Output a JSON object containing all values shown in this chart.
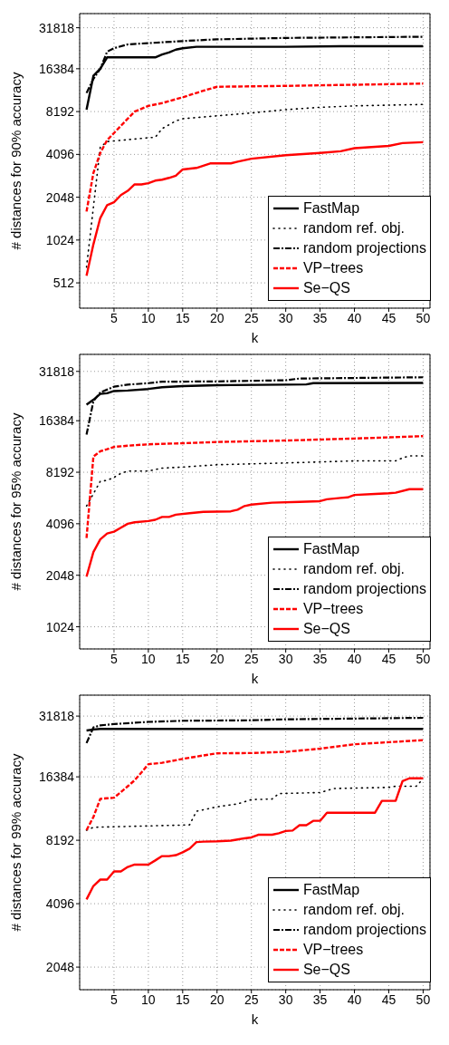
{
  "chart_data": [
    {
      "type": "line",
      "xlabel": "k",
      "ylabel": "# distances for 90% accuracy",
      "log": "y",
      "grid": true,
      "legend": "bottom right",
      "marker": "none",
      "xlim": [
        0,
        51
      ],
      "xticks": [
        5,
        10,
        15,
        20,
        25,
        30,
        35,
        40,
        45,
        50
      ],
      "ylim": [
        340,
        40000
      ],
      "yticks": [
        512,
        1024,
        2048,
        4096,
        8192,
        16384,
        31818
      ],
      "series": [
        {
          "name": "FastMap",
          "color": "#000000",
          "line_style": "solid",
          "x": [
            1,
            2,
            3,
            4,
            11,
            12,
            13,
            14,
            15,
            17,
            30,
            38,
            50
          ],
          "values": [
            8450,
            14600,
            16384,
            19700,
            19700,
            20640,
            21300,
            22330,
            22840,
            23380,
            23380,
            23600,
            23600
          ]
        },
        {
          "name": "random ref. obj.",
          "color": "#000000",
          "line_style": "dotted",
          "x": [
            1,
            3,
            4,
            10,
            11,
            12,
            14,
            15,
            20,
            25,
            30,
            35,
            40,
            50
          ],
          "values": [
            660,
            4600,
            5040,
            5360,
            5400,
            6210,
            7040,
            7300,
            7650,
            8010,
            8450,
            8780,
            8980,
            9190
          ]
        },
        {
          "name": "random projections",
          "color": "#000000",
          "line_style": "dashdot",
          "x": [
            1,
            2,
            3,
            4,
            5,
            7,
            10,
            15,
            20,
            30,
            50
          ],
          "values": [
            11060,
            13900,
            16384,
            21600,
            22840,
            24300,
            24800,
            25650,
            26370,
            26980,
            27500
          ]
        },
        {
          "name": "VP−trees",
          "color": "#ff0000",
          "line_style": "dashed",
          "x": [
            1,
            2,
            3,
            4,
            5,
            6,
            7,
            8,
            10,
            12,
            15,
            18,
            20,
            30,
            50
          ],
          "values": [
            1625,
            3030,
            4190,
            5160,
            5790,
            6500,
            7300,
            8190,
            8980,
            9400,
            10320,
            11480,
            12240,
            12410,
            12880
          ]
        },
        {
          "name": "Se−QS",
          "color": "#ff0000",
          "line_style": "solid",
          "x": [
            1,
            2,
            3,
            4,
            5,
            6,
            7,
            8,
            9,
            10,
            11,
            12,
            13,
            14,
            15,
            17,
            19,
            22,
            23,
            25,
            30,
            35,
            38,
            40,
            45,
            47,
            50
          ],
          "values": [
            575,
            955,
            1462,
            1803,
            1890,
            2120,
            2270,
            2520,
            2520,
            2570,
            2680,
            2720,
            2800,
            2900,
            3210,
            3290,
            3540,
            3540,
            3640,
            3820,
            4040,
            4190,
            4310,
            4530,
            4700,
            4920,
            4990
          ]
        }
      ]
    },
    {
      "type": "line",
      "xlabel": "k",
      "ylabel": "# distances for 95% accuracy",
      "log": "y",
      "grid": true,
      "legend": "bottom right",
      "marker": "none",
      "xlim": [
        0,
        51
      ],
      "xticks": [
        5,
        10,
        15,
        20,
        25,
        30,
        35,
        40,
        45,
        50
      ],
      "ylim": [
        760,
        40000
      ],
      "yticks": [
        1024,
        2048,
        4096,
        8192,
        16384,
        31818
      ],
      "series": [
        {
          "name": "FastMap",
          "color": "#000000",
          "line_style": "solid",
          "x": [
            1,
            2,
            3,
            4,
            5,
            7,
            10,
            12,
            15,
            20,
            30,
            33,
            34,
            50
          ],
          "values": [
            20320,
            21720,
            23490,
            23700,
            24420,
            24600,
            25110,
            25700,
            26100,
            26420,
            26620,
            26700,
            27150,
            27250
          ]
        },
        {
          "name": "random ref. obj.",
          "color": "#000000",
          "line_style": "dotted",
          "x": [
            1,
            2,
            3,
            4,
            5,
            6,
            7,
            10,
            12,
            15,
            20,
            30,
            40,
            46,
            47,
            48,
            50
          ],
          "values": [
            5200,
            6130,
            7250,
            7350,
            7640,
            8060,
            8320,
            8320,
            8660,
            8780,
            9060,
            9280,
            9540,
            9540,
            9930,
            10210,
            10210
          ]
        },
        {
          "name": "random projections",
          "color": "#000000",
          "line_style": "dashdot",
          "x": [
            1,
            2,
            3,
            4,
            5,
            7,
            10,
            12,
            20,
            30,
            32,
            50
          ],
          "values": [
            13580,
            21300,
            23950,
            24900,
            25900,
            26620,
            27150,
            27690,
            27800,
            28250,
            28900,
            29400
          ]
        },
        {
          "name": "VP−trees",
          "color": "#ff0000",
          "line_style": "dashed",
          "x": [
            1,
            2,
            3,
            4,
            5,
            7,
            10,
            15,
            20,
            30,
            40,
            50
          ],
          "values": [
            3380,
            10120,
            10860,
            11160,
            11520,
            11700,
            11930,
            12100,
            12300,
            12550,
            12890,
            13310
          ]
        },
        {
          "name": "Se−QS",
          "color": "#ff0000",
          "line_style": "solid",
          "x": [
            1,
            2,
            3,
            4,
            5,
            6,
            7,
            8,
            10,
            11,
            12,
            13,
            14,
            16,
            18,
            22,
            23,
            24,
            25,
            28,
            32,
            35,
            36,
            38,
            39,
            40,
            43,
            45,
            46,
            48,
            50
          ],
          "values": [
            2010,
            2800,
            3320,
            3590,
            3680,
            3880,
            4096,
            4180,
            4250,
            4320,
            4490,
            4490,
            4630,
            4720,
            4810,
            4840,
            4950,
            5200,
            5300,
            5440,
            5500,
            5550,
            5690,
            5800,
            5840,
            6030,
            6120,
            6170,
            6220,
            6520,
            6520
          ]
        }
      ]
    },
    {
      "type": "line",
      "xlabel": "k",
      "ylabel": "# distances for 99% accuracy",
      "log": "y",
      "grid": true,
      "legend": "bottom right",
      "marker": "none",
      "xlim": [
        0,
        51
      ],
      "xticks": [
        5,
        10,
        15,
        20,
        25,
        30,
        35,
        40,
        45,
        50
      ],
      "ylim": [
        1600,
        40000
      ],
      "yticks": [
        2048,
        4096,
        8192,
        16384,
        31818
      ],
      "series": [
        {
          "name": "FastMap",
          "color": "#000000",
          "line_style": "solid",
          "x": [
            1,
            2,
            3,
            50
          ],
          "values": [
            27200,
            27500,
            27650,
            27650
          ]
        },
        {
          "name": "random ref. obj.",
          "color": "#000000",
          "line_style": "dotted",
          "x": [
            1,
            2,
            16,
            17,
            20,
            23,
            25,
            28,
            29,
            35,
            37,
            45,
            46,
            49,
            50
          ],
          "values": [
            9150,
            9440,
            9690,
            11250,
            11810,
            12190,
            12780,
            12850,
            13640,
            13800,
            14420,
            14600,
            14780,
            14780,
            16020
          ]
        },
        {
          "name": "random projections",
          "color": "#000000",
          "line_style": "dashdot",
          "x": [
            1,
            2,
            3,
            5,
            10,
            15,
            25,
            30,
            50
          ],
          "values": [
            23700,
            28100,
            28730,
            29180,
            29860,
            30230,
            30400,
            30720,
            31230
          ]
        },
        {
          "name": "VP−trees",
          "color": "#ff0000",
          "line_style": "dashed",
          "x": [
            1,
            2,
            3,
            4,
            5,
            6,
            7,
            8,
            9,
            10,
            12,
            15,
            18,
            20,
            25,
            30,
            35,
            40,
            45,
            50
          ],
          "values": [
            9150,
            10560,
            12880,
            12960,
            13040,
            13870,
            14780,
            15770,
            17200,
            18810,
            19100,
            19930,
            20700,
            21180,
            21250,
            21520,
            22300,
            23390,
            23920,
            24470
          ]
        },
        {
          "name": "Se−QS",
          "color": "#ff0000",
          "line_style": "solid",
          "x": [
            1,
            2,
            3,
            4,
            5,
            6,
            7,
            8,
            10,
            11,
            12,
            13,
            14,
            15,
            16,
            17,
            18,
            20,
            22,
            23,
            24,
            25,
            26,
            27,
            28,
            29,
            30,
            31,
            32,
            33,
            34,
            35,
            36,
            40,
            41,
            43,
            44,
            45,
            46,
            47,
            48,
            49,
            50
          ],
          "values": [
            4290,
            4970,
            5330,
            5330,
            5830,
            5830,
            6120,
            6280,
            6280,
            6570,
            6890,
            6890,
            6960,
            7180,
            7470,
            8030,
            8070,
            8100,
            8160,
            8260,
            8370,
            8450,
            8700,
            8700,
            8700,
            8850,
            9070,
            9110,
            9650,
            9650,
            10130,
            10130,
            11070,
            11070,
            11070,
            11070,
            12600,
            12600,
            12600,
            15620,
            16120,
            16120,
            16120
          ]
        }
      ]
    }
  ]
}
